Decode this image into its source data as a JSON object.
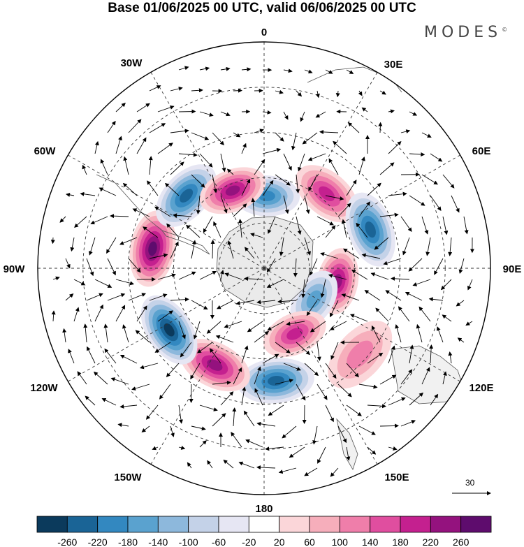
{
  "title": "Base 01/06/2025 00 UTC, valid 06/06/2025 00 UTC",
  "brand": {
    "text": "MODES",
    "mark": "©"
  },
  "longitude_labels": [
    {
      "id": "0",
      "text": "0"
    },
    {
      "id": "30E",
      "text": "30E"
    },
    {
      "id": "60E",
      "text": "60E"
    },
    {
      "id": "90E",
      "text": "90E"
    },
    {
      "id": "120E",
      "text": "120E"
    },
    {
      "id": "150E",
      "text": "150E"
    },
    {
      "id": "180",
      "text": "180"
    },
    {
      "id": "150W",
      "text": "150W"
    },
    {
      "id": "120W",
      "text": "120W"
    },
    {
      "id": "90W",
      "text": "90W"
    },
    {
      "id": "60W",
      "text": "60W"
    },
    {
      "id": "30W",
      "text": "30W"
    }
  ],
  "vector_reference": {
    "value": "30"
  },
  "colorbar": {
    "colors": [
      "#0b3a5c",
      "#1a6496",
      "#3388c0",
      "#5aa2cf",
      "#8db8dc",
      "#c4d2e8",
      "#e6e6f3",
      "#ffffff",
      "#fbd6d9",
      "#f6aebb",
      "#ef7eaa",
      "#e04e9f",
      "#c4208f",
      "#94127e",
      "#5e0c6d"
    ],
    "labels": [
      "-260",
      "-220",
      "-180",
      "-140",
      "-100",
      "-60",
      "-20",
      "20",
      "60",
      "100",
      "140",
      "180",
      "220",
      "260"
    ]
  },
  "anomaly_centers": [
    {
      "name": "neg-0",
      "value": -180,
      "lon": 2,
      "lat": -58
    },
    {
      "name": "pos-30E",
      "value": 200,
      "lon": 40,
      "lat": -47
    },
    {
      "name": "neg-60E",
      "value": -250,
      "lon": 70,
      "lat": -40
    },
    {
      "name": "pos-90E",
      "value": 230,
      "lon": 100,
      "lat": -57
    },
    {
      "name": "neg-110E",
      "value": -170,
      "lon": 122,
      "lat": -64
    },
    {
      "name": "pos-150E",
      "value": 190,
      "lon": 155,
      "lat": -58
    },
    {
      "name": "pos-130E",
      "value": 120,
      "lon": 132,
      "lat": -33
    },
    {
      "name": "neg-175E",
      "value": -240,
      "lon": 174,
      "lat": -40
    },
    {
      "name": "pos-155W",
      "value": 250,
      "lon": -153,
      "lat": -42
    },
    {
      "name": "neg-120W",
      "value": -260,
      "lon": -123,
      "lat": -40
    },
    {
      "name": "pos-80W",
      "value": 270,
      "lon": -80,
      "lat": -40
    },
    {
      "name": "neg-50W",
      "value": -240,
      "lon": -47,
      "lat": -43
    },
    {
      "name": "pos-25W",
      "value": 240,
      "lon": -22,
      "lat": -53
    }
  ]
}
